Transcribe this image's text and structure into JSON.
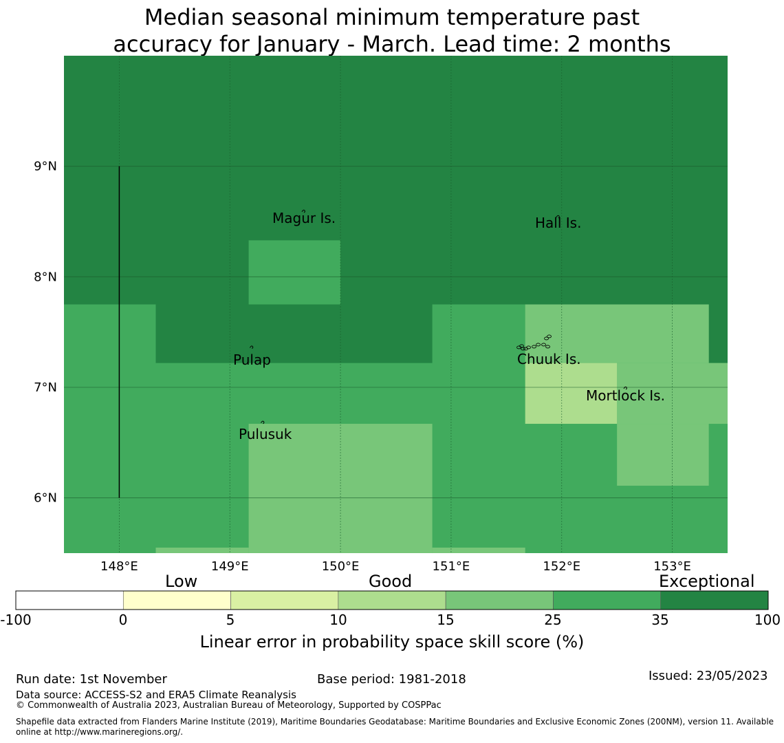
{
  "title": {
    "line1": "Median seasonal minimum temperature past",
    "line2": "accuracy for January - March. Lead time: 2 months"
  },
  "map": {
    "lon_range": [
      147.5,
      153.5
    ],
    "lat_range": [
      5.5,
      10.0
    ],
    "x_ticks": [
      {
        "value": 148,
        "label": "148°E"
      },
      {
        "value": 149,
        "label": "149°E"
      },
      {
        "value": 150,
        "label": "150°E"
      },
      {
        "value": 151,
        "label": "151°E"
      },
      {
        "value": 152,
        "label": "152°E"
      },
      {
        "value": 153,
        "label": "153°E"
      }
    ],
    "y_ticks": [
      {
        "value": 9,
        "label": "9°N"
      },
      {
        "value": 8,
        "label": "8°N"
      },
      {
        "value": 7,
        "label": "7°N"
      },
      {
        "value": 6,
        "label": "6°N"
      }
    ],
    "colors": {
      "exceptional": "#238443",
      "good_high": "#41ab5d",
      "good_mid": "#78c679",
      "good_low": "#addd8e",
      "low_high": "#d9f0a3",
      "low": "#ffffcc",
      "none": "#ffffff",
      "grid": "#1a5c2c"
    },
    "skill_regions": [
      {
        "lon": [
          147.5,
          153.5
        ],
        "lat": [
          5.5,
          10.0
        ],
        "cls": "good_high"
      },
      {
        "lon": [
          147.5,
          153.5
        ],
        "lat": [
          7.75,
          10.0
        ],
        "cls": "exceptional"
      },
      {
        "lon": [
          148.33,
          150.83
        ],
        "lat": [
          7.22,
          7.75
        ],
        "cls": "exceptional"
      },
      {
        "lon": [
          153.33,
          153.5
        ],
        "lat": [
          7.22,
          7.75
        ],
        "cls": "exceptional"
      },
      {
        "lon": [
          149.17,
          150.0
        ],
        "lat": [
          7.75,
          8.33
        ],
        "cls": "good_high"
      },
      {
        "lon": [
          151.67,
          153.33
        ],
        "lat": [
          7.22,
          7.75
        ],
        "cls": "good_mid"
      },
      {
        "lon": [
          152.5,
          153.5
        ],
        "lat": [
          6.67,
          7.22
        ],
        "cls": "good_mid"
      },
      {
        "lon": [
          152.5,
          153.33
        ],
        "lat": [
          6.11,
          6.67
        ],
        "cls": "good_mid"
      },
      {
        "lon": [
          151.67,
          152.5
        ],
        "lat": [
          6.67,
          7.22
        ],
        "cls": "good_low"
      },
      {
        "lon": [
          149.17,
          150.83
        ],
        "lat": [
          5.5,
          6.67
        ],
        "cls": "good_mid"
      },
      {
        "lon": [
          148.33,
          149.17
        ],
        "lat": [
          5.5,
          5.55
        ],
        "cls": "good_mid"
      },
      {
        "lon": [
          150.83,
          151.67
        ],
        "lat": [
          5.5,
          5.55
        ],
        "cls": "good_mid"
      }
    ],
    "boundary_line": {
      "lon": 148.0,
      "lat": [
        6.0,
        9.0
      ]
    },
    "islands": [
      {
        "name": "Magur Is.",
        "lon": 149.67,
        "lat": 8.6
      },
      {
        "name": "Hall Is.",
        "lon": 151.97,
        "lat": 8.55
      },
      {
        "name": "Pulap",
        "lon": 149.2,
        "lat": 7.37
      },
      {
        "name": "Chuuk Is.",
        "lon": 151.75,
        "lat": 7.38
      },
      {
        "name": "Mortlock Is.",
        "lon": 152.58,
        "lat": 7.0
      },
      {
        "name": "Pulusuk",
        "lon": 149.3,
        "lat": 6.69
      }
    ],
    "place_labels": [
      "Magur Is.",
      "Hall Is.",
      "Pulap",
      "Chuuk Is.",
      "Mortlock Is.",
      "Pulusuk"
    ]
  },
  "colorbar": {
    "category_labels": [
      "Low",
      "Good",
      "Exceptional"
    ],
    "ticks": [
      "-100",
      "0",
      "5",
      "10",
      "15",
      "25",
      "35",
      "100"
    ],
    "bin_colors": [
      "#ffffff",
      "#ffffcc",
      "#d9f0a3",
      "#addd8e",
      "#78c679",
      "#41ab5d",
      "#238443"
    ],
    "label": "Linear error in probability space skill score (%)"
  },
  "footer": {
    "run_date": "Run date: 1st November",
    "base_period": "Base period: 1981-2018",
    "issued": "Issued: 23/05/2023",
    "data_source": "Data source: ACCESS-S2 and ERA5 Climate Reanalysis",
    "copyright": "© Commonwealth of Australia 2023, Australian Bureau of Meteorology, Supported by COSPPac",
    "shapefile_line1": "Shapefile data extracted from Flanders Marine Institute (2019), Maritime Boundaries Geodatabase: Maritime Boundaries and Exclusive Economic Zones (200NM), version 11. Available",
    "shapefile_line2": "online at http://www.marineregions.org/."
  }
}
